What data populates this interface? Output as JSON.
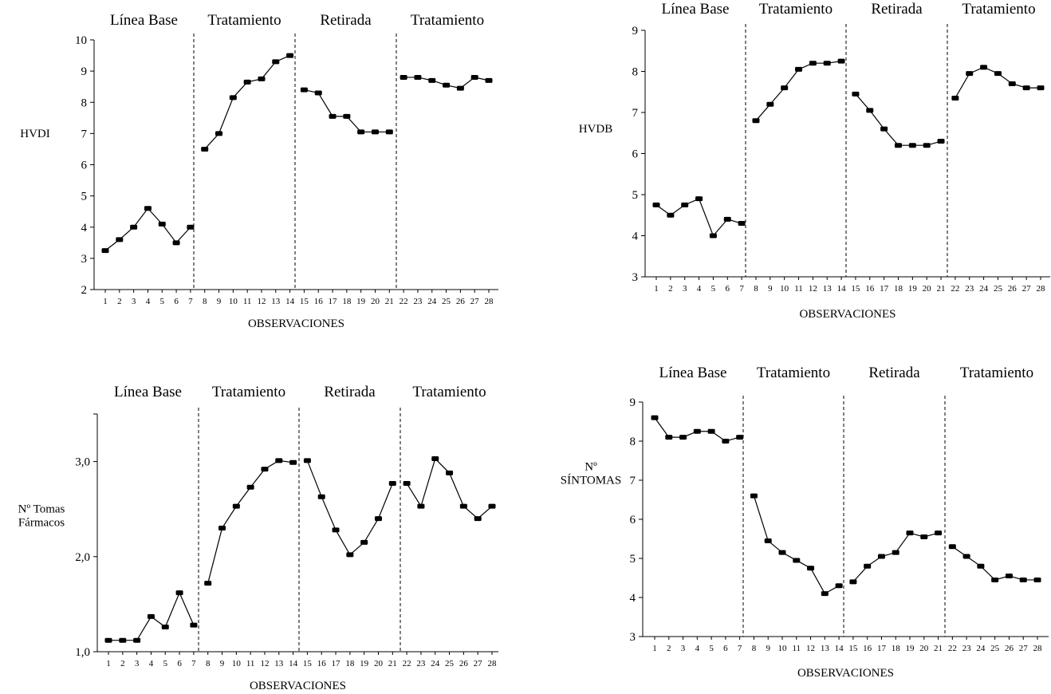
{
  "chart_data": [
    {
      "type": "line",
      "ylabel": [
        "HVDI"
      ],
      "xlabel": "OBSERVACIONES",
      "phases": [
        "Línea Base",
        "Tratamiento",
        "Retirada",
        "Tratamiento"
      ],
      "yticks": [
        "2",
        "3",
        "4",
        "5",
        "6",
        "7",
        "8",
        "9",
        "10"
      ],
      "ylim": [
        2,
        10
      ],
      "x": [
        1,
        2,
        3,
        4,
        5,
        6,
        7,
        8,
        9,
        10,
        11,
        12,
        13,
        14,
        15,
        16,
        17,
        18,
        19,
        20,
        21,
        22,
        23,
        24,
        25,
        26,
        27,
        28
      ],
      "values": [
        3.25,
        3.6,
        4.0,
        4.6,
        4.1,
        3.5,
        4.0,
        6.5,
        7.0,
        8.15,
        8.65,
        8.75,
        9.3,
        9.5,
        8.4,
        8.3,
        7.55,
        7.55,
        7.05,
        7.05,
        7.05,
        8.8,
        8.8,
        8.7,
        8.55,
        8.45,
        8.8,
        8.7
      ],
      "grid": false
    },
    {
      "type": "line",
      "ylabel": [
        "HVDB"
      ],
      "xlabel": "OBSERVACIONES",
      "phases": [
        "Línea Base",
        "Tratamiento",
        "Retirada",
        "Tratamiento"
      ],
      "yticks": [
        "3",
        "4",
        "5",
        "6",
        "7",
        "8",
        "9"
      ],
      "ylim": [
        3,
        9
      ],
      "x": [
        1,
        2,
        3,
        4,
        5,
        6,
        7,
        8,
        9,
        10,
        11,
        12,
        13,
        14,
        15,
        16,
        17,
        18,
        19,
        20,
        21,
        22,
        23,
        24,
        25,
        26,
        27,
        28
      ],
      "values": [
        4.75,
        4.5,
        4.75,
        4.9,
        4.0,
        4.4,
        4.3,
        6.8,
        7.2,
        7.6,
        8.05,
        8.2,
        8.2,
        8.25,
        7.45,
        7.05,
        6.6,
        6.2,
        6.2,
        6.2,
        6.3,
        7.35,
        7.95,
        8.1,
        7.95,
        7.7,
        7.6,
        7.6
      ],
      "grid": false
    },
    {
      "type": "line",
      "ylabel": [
        "Nº Tomas",
        "Fármacos"
      ],
      "xlabel": "OBSERVACIONES",
      "phases": [
        "Línea Base",
        "Tratamiento",
        "Retirada",
        "Tratamiento"
      ],
      "yticks": [
        "1,0",
        "2,0",
        "3,0"
      ],
      "ylim": [
        1.0,
        3.5
      ],
      "x": [
        1,
        2,
        3,
        4,
        5,
        6,
        7,
        8,
        9,
        10,
        11,
        12,
        13,
        14,
        15,
        16,
        17,
        18,
        19,
        20,
        21,
        22,
        23,
        24,
        25,
        26,
        27,
        28
      ],
      "values": [
        1.12,
        1.12,
        1.12,
        1.37,
        1.26,
        1.62,
        1.28,
        1.72,
        2.3,
        2.53,
        2.73,
        2.92,
        3.01,
        2.99,
        3.01,
        2.63,
        2.28,
        2.02,
        2.15,
        2.4,
        2.77,
        2.77,
        2.53,
        3.03,
        2.88,
        2.53,
        2.4,
        2.53
      ],
      "grid": false
    },
    {
      "type": "line",
      "ylabel": [
        "Nº",
        "SÍNTOMAS"
      ],
      "xlabel": "OBSERVACIONES",
      "phases": [
        "Línea Base",
        "Tratamiento",
        "Retirada",
        "Tratamiento"
      ],
      "yticks": [
        "3",
        "4",
        "5",
        "6",
        "7",
        "8",
        "9"
      ],
      "ylim": [
        3,
        9
      ],
      "x": [
        1,
        2,
        3,
        4,
        5,
        6,
        7,
        8,
        9,
        10,
        11,
        12,
        13,
        14,
        15,
        16,
        17,
        18,
        19,
        20,
        21,
        22,
        23,
        24,
        25,
        26,
        27,
        28
      ],
      "values": [
        8.6,
        8.1,
        8.1,
        8.25,
        8.25,
        8.0,
        8.1,
        6.6,
        5.45,
        5.15,
        4.95,
        4.75,
        4.1,
        4.3,
        4.4,
        4.8,
        5.05,
        5.15,
        5.65,
        5.55,
        5.65,
        5.3,
        5.05,
        4.8,
        4.45,
        4.55,
        4.45,
        4.45
      ],
      "grid": false
    }
  ]
}
